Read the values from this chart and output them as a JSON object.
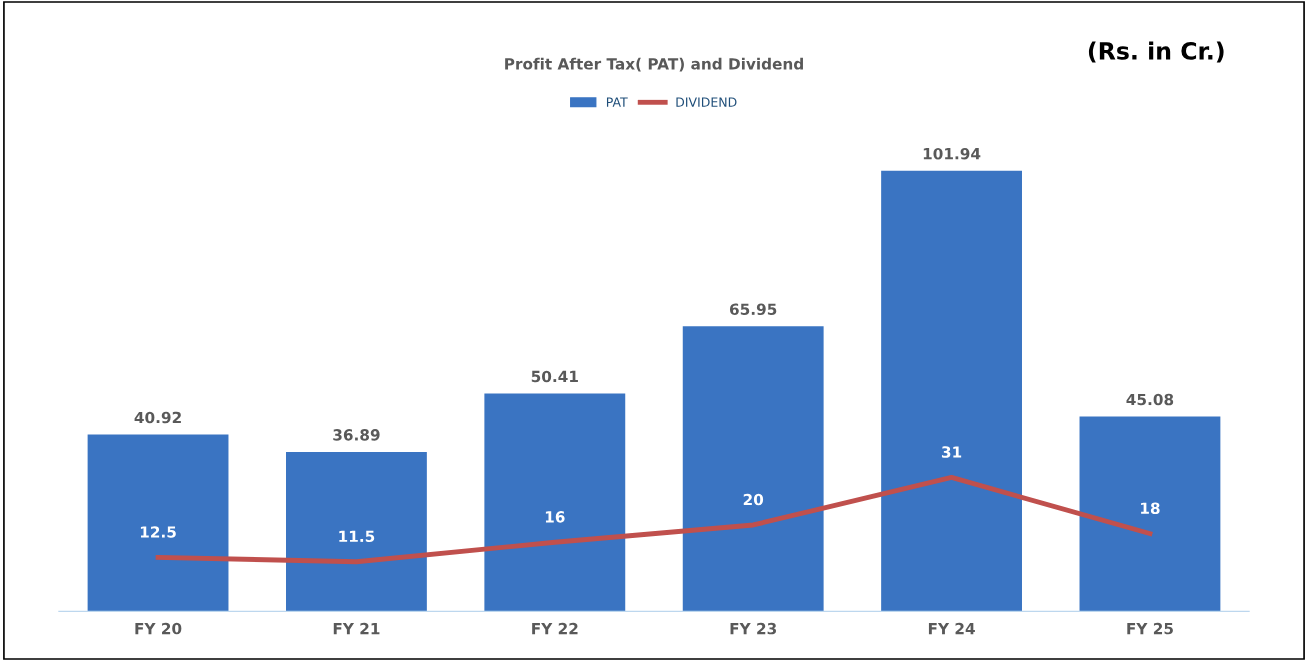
{
  "chart_data": {
    "type": "bar",
    "title": "Profit After Tax( PAT) and Dividend",
    "annotations": [
      "(Rs. in Cr.)"
    ],
    "categories": [
      "FY 20",
      "FY 21",
      "FY 22",
      "FY 23",
      "FY 24",
      "FY 25"
    ],
    "series": [
      {
        "name": "PAT",
        "color": "#3a74c2",
        "values": [
          40.92,
          36.89,
          50.41,
          65.95,
          101.94,
          45.08
        ]
      },
      {
        "name": "DIVIDEND",
        "type": "line",
        "color": "#c0504d",
        "values": [
          12.5,
          11.5,
          16,
          20,
          31,
          18
        ]
      }
    ],
    "data_labels": true,
    "legend": "top",
    "grid": false,
    "tick_labels": "x",
    "line_style": "solid",
    "marker": "none"
  }
}
